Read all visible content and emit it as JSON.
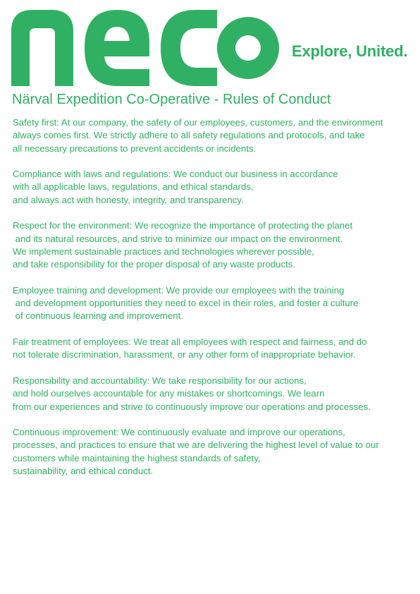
{
  "brand": {
    "logo_text": "NECO",
    "tagline": "Explore, United.",
    "color": "#2fb063"
  },
  "document": {
    "title": "Närval Expedition Co-Operative - Rules of Conduct",
    "sections": [
      {
        "lines": [
          "Safety first: At our company, the safety of our employees, customers, and the environment",
          "always comes first. We strictly adhere to all safety regulations and protocols, and take",
          "all necessary precautions to prevent accidents or incidents."
        ]
      },
      {
        "lines": [
          "Compliance with laws and regulations: We conduct our business in accordance",
          "with all applicable laws, regulations, and ethical standards,",
          "and always act with honesty, integrity, and transparency."
        ]
      },
      {
        "lines": [
          "Respect for the environment: We recognize the importance of protecting the planet",
          " and its natural resources, and strive to minimize our impact on the environment.",
          "We implement sustainable practices and technologies wherever possible,",
          "and take responsibility for the proper disposal of any waste products."
        ]
      },
      {
        "lines": [
          "Employee training and development: We provide our employees with the training",
          " and development opportunities they need to excel in their roles, and foster a culture",
          " of continuous learning and improvement."
        ]
      },
      {
        "lines": [
          "Fair treatment of employees: We treat all employees with respect and fairness, and do",
          "not tolerate discrimination, harassment, or any other form of inappropriate behavior."
        ]
      },
      {
        "lines": [
          "Responsibility and accountability: We take responsibility for our actions,",
          "and hold ourselves accountable for any mistakes or shortcomings. We learn",
          "from our experiences and strive to continuously improve our operations and processes."
        ]
      },
      {
        "lines": [
          "Continuous improvement: We continuously evaluate and improve our operations,",
          "processes, and practices to ensure that we are delivering the highest level of value to our",
          "customers while maintaining the highest standards of safety,",
          "sustainability, and ethical conduct."
        ]
      }
    ]
  }
}
